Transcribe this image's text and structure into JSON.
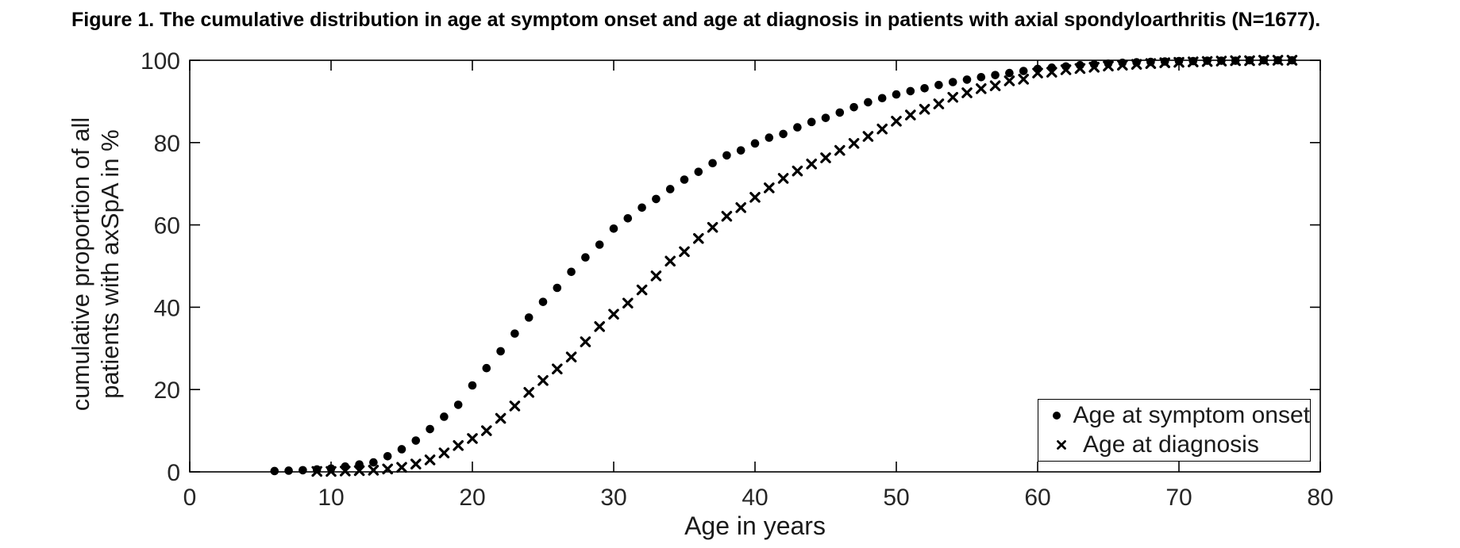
{
  "chart_data": {
    "type": "scatter",
    "title": "Figure 1. The cumulative distribution in age at symptom onset and age at diagnosis in patients with axial spondyloarthritis (N=1677).",
    "xlabel": "Age in years",
    "ylabel_lines": [
      "cumulative proportion of all",
      "patients with axSpA in %"
    ],
    "xlim": [
      0,
      80
    ],
    "ylim": [
      0,
      100
    ],
    "xticks": [
      0,
      10,
      20,
      30,
      40,
      50,
      60,
      70,
      80
    ],
    "yticks": [
      0,
      20,
      40,
      60,
      80,
      100
    ],
    "grid": false,
    "legend_position": "lower right",
    "colors": {
      "marker": "#000000",
      "axis": "#000000",
      "tick_label": "#262626"
    },
    "series": [
      {
        "name": "Age at symptom onset",
        "marker": "dot",
        "x": [
          6,
          7,
          8,
          9,
          10,
          11,
          12,
          13,
          14,
          15,
          16,
          17,
          18,
          19,
          20,
          21,
          22,
          23,
          24,
          25,
          26,
          27,
          28,
          29,
          30,
          31,
          32,
          33,
          34,
          35,
          36,
          37,
          38,
          39,
          40,
          41,
          42,
          43,
          44,
          45,
          46,
          47,
          48,
          49,
          50,
          51,
          52,
          53,
          54,
          55,
          56,
          57,
          58,
          59,
          60,
          61,
          62,
          63,
          64,
          65,
          66,
          67,
          68,
          69,
          70,
          71,
          72,
          73,
          74,
          75,
          76,
          77,
          78
        ],
        "y": [
          0.2,
          0.3,
          0.4,
          0.6,
          0.8,
          1.3,
          1.8,
          2.3,
          3.8,
          5.5,
          7.6,
          10.4,
          13.4,
          16.3,
          21.0,
          25.2,
          29.3,
          33.6,
          37.5,
          41.3,
          44.7,
          48.6,
          52.1,
          55.2,
          59.1,
          61.6,
          64.2,
          66.3,
          68.7,
          71.0,
          72.9,
          75.0,
          76.9,
          78.1,
          79.8,
          81.2,
          82.1,
          83.7,
          85.0,
          86.0,
          87.3,
          88.6,
          89.8,
          90.8,
          91.7,
          92.5,
          93.2,
          94.0,
          94.7,
          95.3,
          95.9,
          96.4,
          96.9,
          97.4,
          97.9,
          98.2,
          98.5,
          98.8,
          99.0,
          99.2,
          99.4,
          99.5,
          99.6,
          99.7,
          99.8,
          99.8,
          99.9,
          99.9,
          99.9,
          100,
          100,
          100,
          100
        ]
      },
      {
        "name": "Age at diagnosis",
        "marker": "x",
        "x": [
          9,
          10,
          11,
          12,
          13,
          14,
          15,
          16,
          17,
          18,
          19,
          20,
          21,
          22,
          23,
          24,
          25,
          26,
          27,
          28,
          29,
          30,
          31,
          32,
          33,
          34,
          35,
          36,
          37,
          38,
          39,
          40,
          41,
          42,
          43,
          44,
          45,
          46,
          47,
          48,
          49,
          50,
          51,
          52,
          53,
          54,
          55,
          56,
          57,
          58,
          59,
          60,
          61,
          62,
          63,
          64,
          65,
          66,
          67,
          68,
          69,
          70,
          71,
          72,
          73,
          74,
          75,
          76,
          77,
          78
        ],
        "y": [
          0.1,
          0.1,
          0.2,
          0.3,
          0.4,
          0.7,
          1.1,
          1.9,
          2.9,
          4.6,
          6.4,
          8.1,
          10.0,
          13.0,
          16.0,
          19.3,
          22.2,
          25.0,
          27.9,
          31.6,
          35.3,
          38.3,
          41.0,
          44.2,
          47.6,
          51.2,
          53.5,
          56.7,
          59.4,
          62.1,
          64.2,
          66.7,
          69.0,
          71.3,
          73.1,
          74.8,
          76.3,
          78.1,
          79.8,
          81.5,
          83.3,
          85.2,
          86.7,
          88.1,
          89.4,
          91.0,
          92.1,
          93.1,
          93.8,
          95.0,
          95.4,
          96.9,
          97.1,
          97.7,
          98.0,
          98.3,
          98.6,
          98.8,
          99.0,
          99.2,
          99.4,
          99.5,
          99.6,
          99.7,
          99.8,
          99.9,
          99.9,
          100,
          100,
          100
        ]
      }
    ]
  }
}
